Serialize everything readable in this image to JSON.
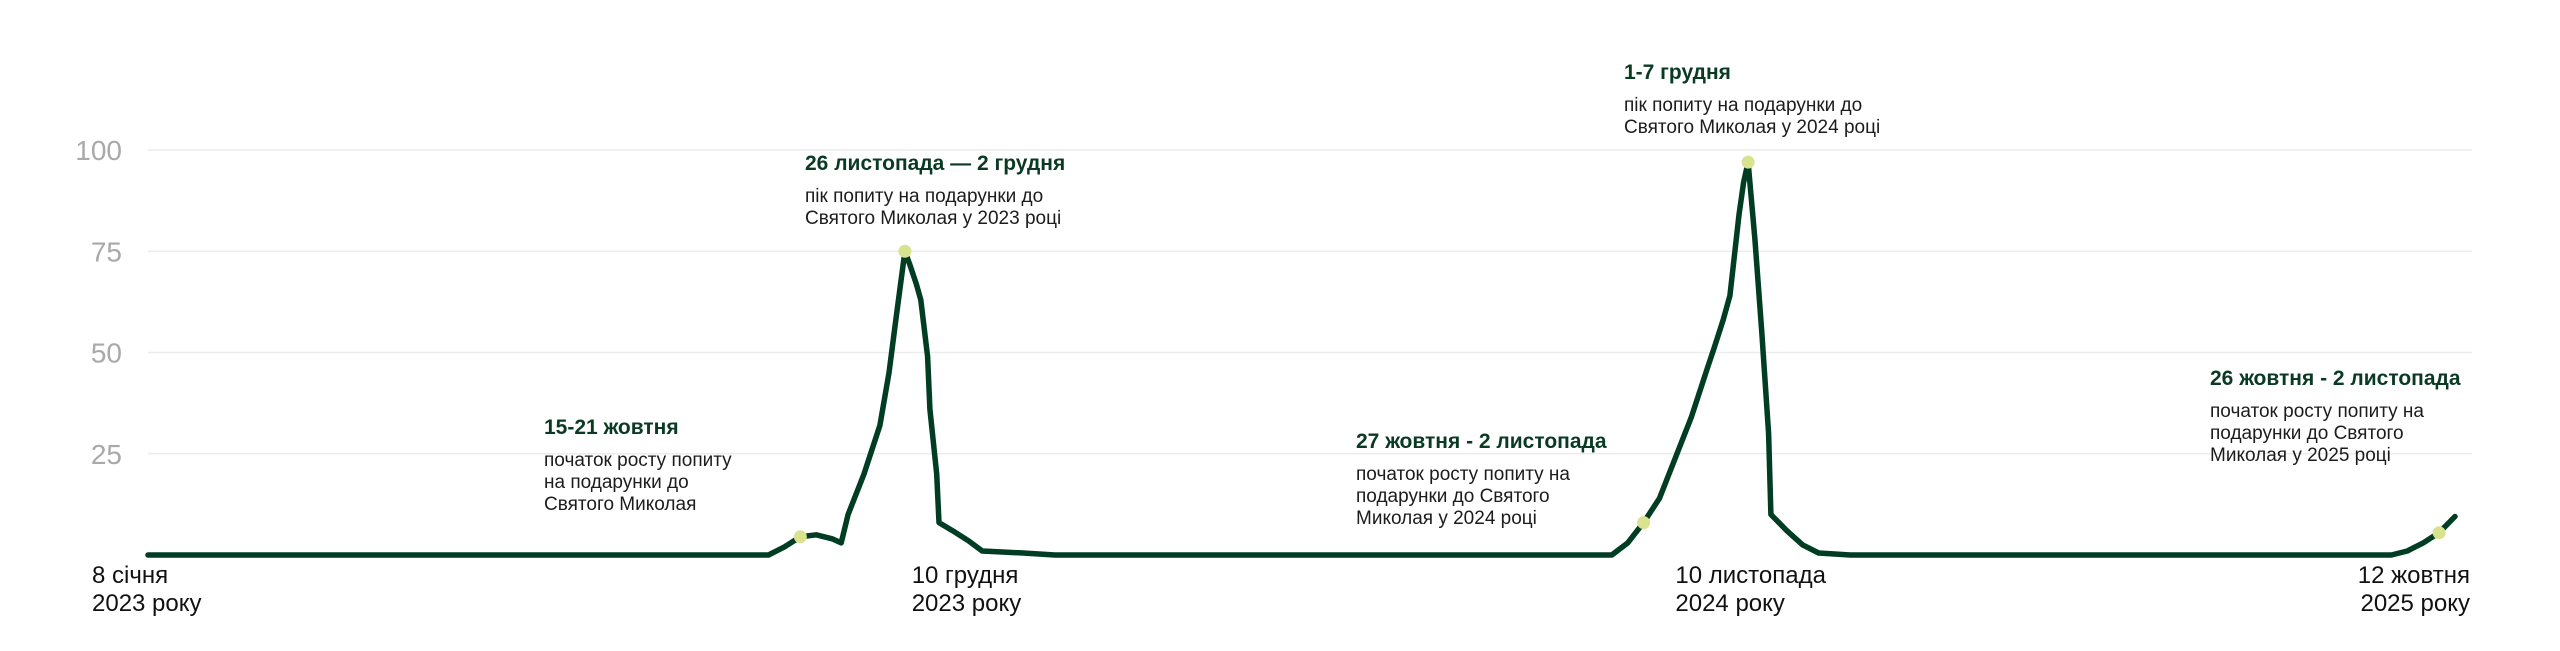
{
  "chart_data": {
    "type": "line",
    "title": "",
    "xlabel": "",
    "ylabel": "",
    "ylim": [
      0,
      100
    ],
    "yticks": [
      25,
      50,
      75,
      100
    ],
    "grid": true,
    "colors": {
      "line": "#003d23",
      "marker": "#d9e38f",
      "grid": "#ececec",
      "ytick": "#a9a9a9",
      "annotation_title": "#0a3a24"
    },
    "x_start": "2023-01-08",
    "x_end": "2025-10-19",
    "xticks": [
      {
        "date": "2023-01-08",
        "line1": "8 січня",
        "line2": "2023 року",
        "anchor": "start"
      },
      {
        "date": "2023-12-10",
        "line1": "10 грудня",
        "line2": "2023 року",
        "anchor": "start"
      },
      {
        "date": "2024-11-10",
        "line1": "10 листопада",
        "line2": "2024 року",
        "anchor": "start"
      },
      {
        "date": "2025-10-12",
        "line1": "12 жовтня",
        "line2": "2025 року",
        "anchor": "end"
      }
    ],
    "series": [
      {
        "points": [
          [
            "2023-01-08",
            0
          ],
          [
            "2023-04-30",
            0
          ],
          [
            "2023-08-06",
            0
          ],
          [
            "2023-10-08",
            0
          ],
          [
            "2023-10-15",
            2
          ],
          [
            "2023-10-22",
            4.5
          ],
          [
            "2023-10-29",
            5
          ],
          [
            "2023-11-05",
            4
          ],
          [
            "2023-11-09",
            3
          ],
          [
            "2023-11-12",
            10
          ],
          [
            "2023-11-19",
            20
          ],
          [
            "2023-11-26",
            32
          ],
          [
            "2023-11-30",
            45
          ],
          [
            "2023-12-03",
            58
          ],
          [
            "2023-12-07",
            75
          ],
          [
            "2023-12-09",
            72
          ],
          [
            "2023-12-12",
            67
          ],
          [
            "2023-12-14",
            63
          ],
          [
            "2023-12-17",
            49
          ],
          [
            "2023-12-18",
            36
          ],
          [
            "2023-12-21",
            20
          ],
          [
            "2023-12-22",
            8
          ],
          [
            "2023-12-28",
            6
          ],
          [
            "2024-01-04",
            3.5
          ],
          [
            "2024-01-10",
            1
          ],
          [
            "2024-01-28",
            0.5
          ],
          [
            "2024-02-11",
            0
          ],
          [
            "2024-06-02",
            0
          ],
          [
            "2024-10-13",
            0
          ],
          [
            "2024-10-20",
            3
          ],
          [
            "2024-10-27",
            8
          ],
          [
            "2024-11-03",
            14
          ],
          [
            "2024-11-10",
            24
          ],
          [
            "2024-11-17",
            34
          ],
          [
            "2024-11-24",
            46
          ],
          [
            "2024-11-27",
            51
          ],
          [
            "2024-12-01",
            58
          ],
          [
            "2024-12-04",
            64
          ],
          [
            "2024-12-08",
            84
          ],
          [
            "2024-12-10",
            92
          ],
          [
            "2024-12-12",
            97
          ],
          [
            "2024-12-15",
            78
          ],
          [
            "2024-12-18",
            55
          ],
          [
            "2024-12-21",
            30
          ],
          [
            "2024-12-22",
            10
          ],
          [
            "2024-12-29",
            6
          ],
          [
            "2025-01-05",
            2.5
          ],
          [
            "2025-01-12",
            0.5
          ],
          [
            "2025-01-26",
            0
          ],
          [
            "2025-06-01",
            0
          ],
          [
            "2025-09-21",
            0
          ],
          [
            "2025-09-28",
            1
          ],
          [
            "2025-10-05",
            3
          ],
          [
            "2025-10-12",
            5.5
          ],
          [
            "2025-10-19",
            9.5
          ]
        ]
      }
    ],
    "annotations": [
      {
        "date": "2023-10-22",
        "value": 4.5,
        "title": "15-21 жовтня",
        "lines": [
          "початок росту попиту",
          "на подарунки до",
          "Святого Миколая"
        ],
        "anchor": "start"
      },
      {
        "date": "2023-12-07",
        "value": 75,
        "title": "26 листопада — 2 грудня",
        "lines": [
          "пік попиту на подарунки до",
          "Святого Миколая у 2023 році"
        ],
        "anchor": "start"
      },
      {
        "date": "2024-10-27",
        "value": 8,
        "title": "27 жовтня - 2 листопада",
        "lines": [
          "початок росту попиту на",
          "подарунки до Святого",
          "Миколая у 2024 році"
        ],
        "anchor": "start"
      },
      {
        "date": "2024-12-12",
        "value": 97,
        "title": "1-7 грудня",
        "lines": [
          "пік попиту на подарунки до",
          "Святого Миколая у 2024 році"
        ],
        "anchor": "start"
      },
      {
        "date": "2025-10-12",
        "value": 5.5,
        "title": "26 жовтня - 2 листопада",
        "lines": [
          "початок росту попиту на",
          "подарунки до Святого",
          "Миколая у 2025 році"
        ],
        "anchor": "start"
      }
    ]
  }
}
